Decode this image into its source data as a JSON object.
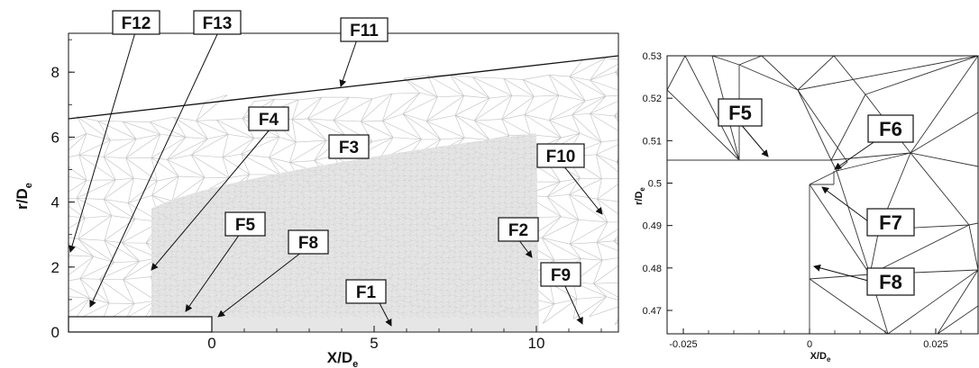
{
  "left_panel": {
    "x_axis": {
      "title": "X/D",
      "subscript": "e",
      "ticks": [
        "0",
        "5",
        "10"
      ]
    },
    "y_axis": {
      "title": "r/D",
      "subscript": "e",
      "ticks": [
        "0",
        "2",
        "4",
        "6",
        "8"
      ]
    },
    "callouts": [
      "F12",
      "F13",
      "F11",
      "F4",
      "F3",
      "F10",
      "F5",
      "F8",
      "F2",
      "F1",
      "F9"
    ]
  },
  "right_panel": {
    "x_axis": {
      "title": "X/D",
      "subscript": "e",
      "ticks": [
        "-0.025",
        "0",
        "0.025"
      ]
    },
    "y_axis": {
      "title": "r/D",
      "subscript": "e",
      "ticks": [
        "0.53",
        "0.52",
        "0.51",
        "0.5",
        "0.49",
        "0.48",
        "0.47"
      ]
    },
    "callouts": [
      "F5",
      "F6",
      "F7",
      "F8"
    ]
  },
  "colors": {
    "mesh_fine": "#d4d4d4",
    "mesh_coarse": "#c8c8c8",
    "lines": "#111111"
  }
}
